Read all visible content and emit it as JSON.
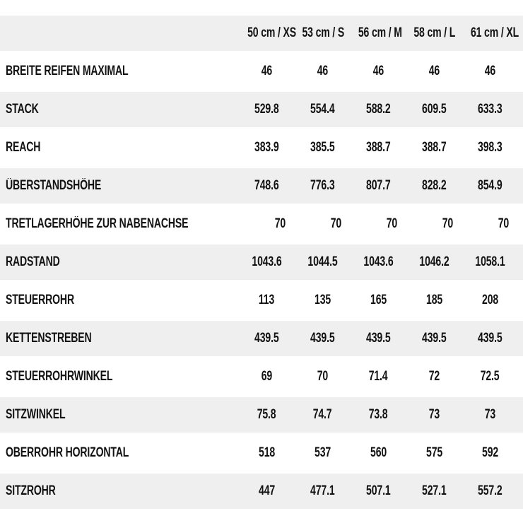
{
  "chart_data": {
    "type": "table",
    "description": "Bicycle frame geometry size table (German labels), measurements in mm / degrees",
    "columns": [
      "50 cm / XS",
      "53 cm / S",
      "56 cm / M",
      "58 cm / L",
      "61 cm / XL"
    ],
    "rows": [
      {
        "label": "BREITE REIFEN MAXIMAL",
        "values": [
          46,
          46,
          46,
          46,
          46
        ]
      },
      {
        "label": "STACK",
        "values": [
          529.8,
          554.4,
          588.2,
          609.5,
          633.3
        ]
      },
      {
        "label": "REACH",
        "values": [
          383.9,
          385.5,
          388.7,
          388.7,
          398.3
        ]
      },
      {
        "label": "ÜBERSTANDSHÖHE",
        "values": [
          748.6,
          776.3,
          807.7,
          828.2,
          854.9
        ]
      },
      {
        "label": "TRETLAGERHÖHE ZUR NABENACHSE",
        "values": [
          70,
          70,
          70,
          70,
          70
        ]
      },
      {
        "label": "RADSTAND",
        "values": [
          1043.6,
          1044.5,
          1043.6,
          1046.2,
          1058.1
        ]
      },
      {
        "label": "STEUERROHR",
        "values": [
          113,
          135,
          165,
          185,
          208
        ]
      },
      {
        "label": "KETTENSTREBEN",
        "values": [
          439.5,
          439.5,
          439.5,
          439.5,
          439.5
        ]
      },
      {
        "label": "STEUERROHRWINKEL",
        "values": [
          69,
          70,
          71.4,
          72,
          72.5
        ]
      },
      {
        "label": "SITZWINKEL",
        "values": [
          75.8,
          74.7,
          73.8,
          73,
          73
        ]
      },
      {
        "label": "OBERROHR HORIZONTAL",
        "values": [
          518,
          537,
          560,
          575,
          592
        ]
      },
      {
        "label": "SITZROHR",
        "values": [
          447,
          477.1,
          507.1,
          527.1,
          557.2
        ]
      }
    ],
    "layout": {
      "legend": "none",
      "grid": "off",
      "row_striping": "header and even data rows shaded"
    },
    "colors": {
      "stripe_bg": "#efefef",
      "row_bg": "#ffffff",
      "text": "#121212",
      "page_bg": "#ffffff"
    }
  }
}
